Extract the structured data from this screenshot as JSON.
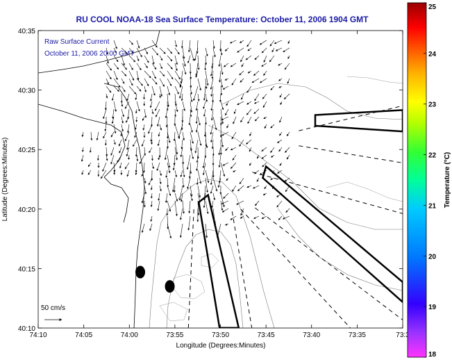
{
  "chart_data": {
    "type": "map",
    "title": "RU COOL  NOAA-18  Sea Surface Temperature:  October 11, 2006 1904 GMT",
    "overlay_title": "Raw Surface Current",
    "overlay_time": "October 11, 2006 20:00 GMT",
    "xlabel": "Longitude (Degrees:Minutes)",
    "ylabel": "Latitude (Degrees:Minutes)",
    "x_ticks": [
      {
        "value": -74.1667,
        "label": "74:10"
      },
      {
        "value": -74.0833,
        "label": "74:05"
      },
      {
        "value": -74.0,
        "label": "74:00"
      },
      {
        "value": -73.9167,
        "label": "73:55"
      },
      {
        "value": -73.8333,
        "label": "73:50"
      },
      {
        "value": -73.75,
        "label": "73:45"
      },
      {
        "value": -73.6667,
        "label": "73:40"
      },
      {
        "value": -73.5833,
        "label": "73:35"
      },
      {
        "value": -73.5,
        "label": "73:3"
      }
    ],
    "y_ticks": [
      {
        "value": 40.5833,
        "label": "40:35"
      },
      {
        "value": 40.5,
        "label": "40:30"
      },
      {
        "value": 40.4167,
        "label": "40:25"
      },
      {
        "value": 40.3333,
        "label": "40:20"
      },
      {
        "value": 40.25,
        "label": "40:15"
      },
      {
        "value": 40.1667,
        "label": "40:10"
      }
    ],
    "xlim": [
      -74.1667,
      -73.5
    ],
    "ylim": [
      40.1667,
      40.5833
    ],
    "colorbar": {
      "label": "Temperature (°C)",
      "range": [
        18,
        25
      ],
      "ticks": [
        "25",
        "24",
        "23",
        "22",
        "21",
        "20",
        "19",
        "18"
      ]
    },
    "scale_arrow_label": "50 cm/s",
    "shipping_lanes": [
      {
        "name": "lane-east",
        "outline": [
          [
            -73.66,
            40.465
          ],
          [
            -73.5,
            40.472
          ],
          [
            -73.5,
            40.442
          ],
          [
            -73.66,
            40.45
          ]
        ]
      },
      {
        "name": "lane-southeast",
        "outline": [
          [
            -73.75,
            40.393
          ],
          [
            -73.5,
            40.231
          ],
          [
            -73.5,
            40.203
          ],
          [
            -73.756,
            40.377
          ]
        ]
      },
      {
        "name": "lane-south",
        "outline": [
          [
            -73.856,
            40.353
          ],
          [
            -73.873,
            40.343
          ],
          [
            -73.835,
            40.167
          ],
          [
            -73.8,
            40.167
          ]
        ]
      }
    ],
    "lane_boundaries": [
      [
        [
          -73.69,
          40.443
        ],
        [
          -73.5,
          40.478
        ]
      ],
      [
        [
          -73.69,
          40.422
        ],
        [
          -73.5,
          40.398
        ]
      ],
      [
        [
          -73.775,
          40.385
        ],
        [
          -73.5,
          40.327
        ]
      ],
      [
        [
          -73.77,
          40.335
        ],
        [
          -73.5,
          40.178
        ]
      ],
      [
        [
          -73.796,
          40.333
        ],
        [
          -73.596,
          40.167
        ]
      ],
      [
        [
          -73.882,
          40.333
        ],
        [
          -73.892,
          40.167
        ]
      ],
      [
        [
          -73.812,
          40.33
        ],
        [
          -73.776,
          40.167
        ]
      ]
    ],
    "buoys": [
      {
        "name": "buoy-1",
        "lon": -73.98,
        "lat": 40.245
      },
      {
        "name": "buoy-2",
        "lon": -73.926,
        "lat": 40.225
      }
    ]
  }
}
